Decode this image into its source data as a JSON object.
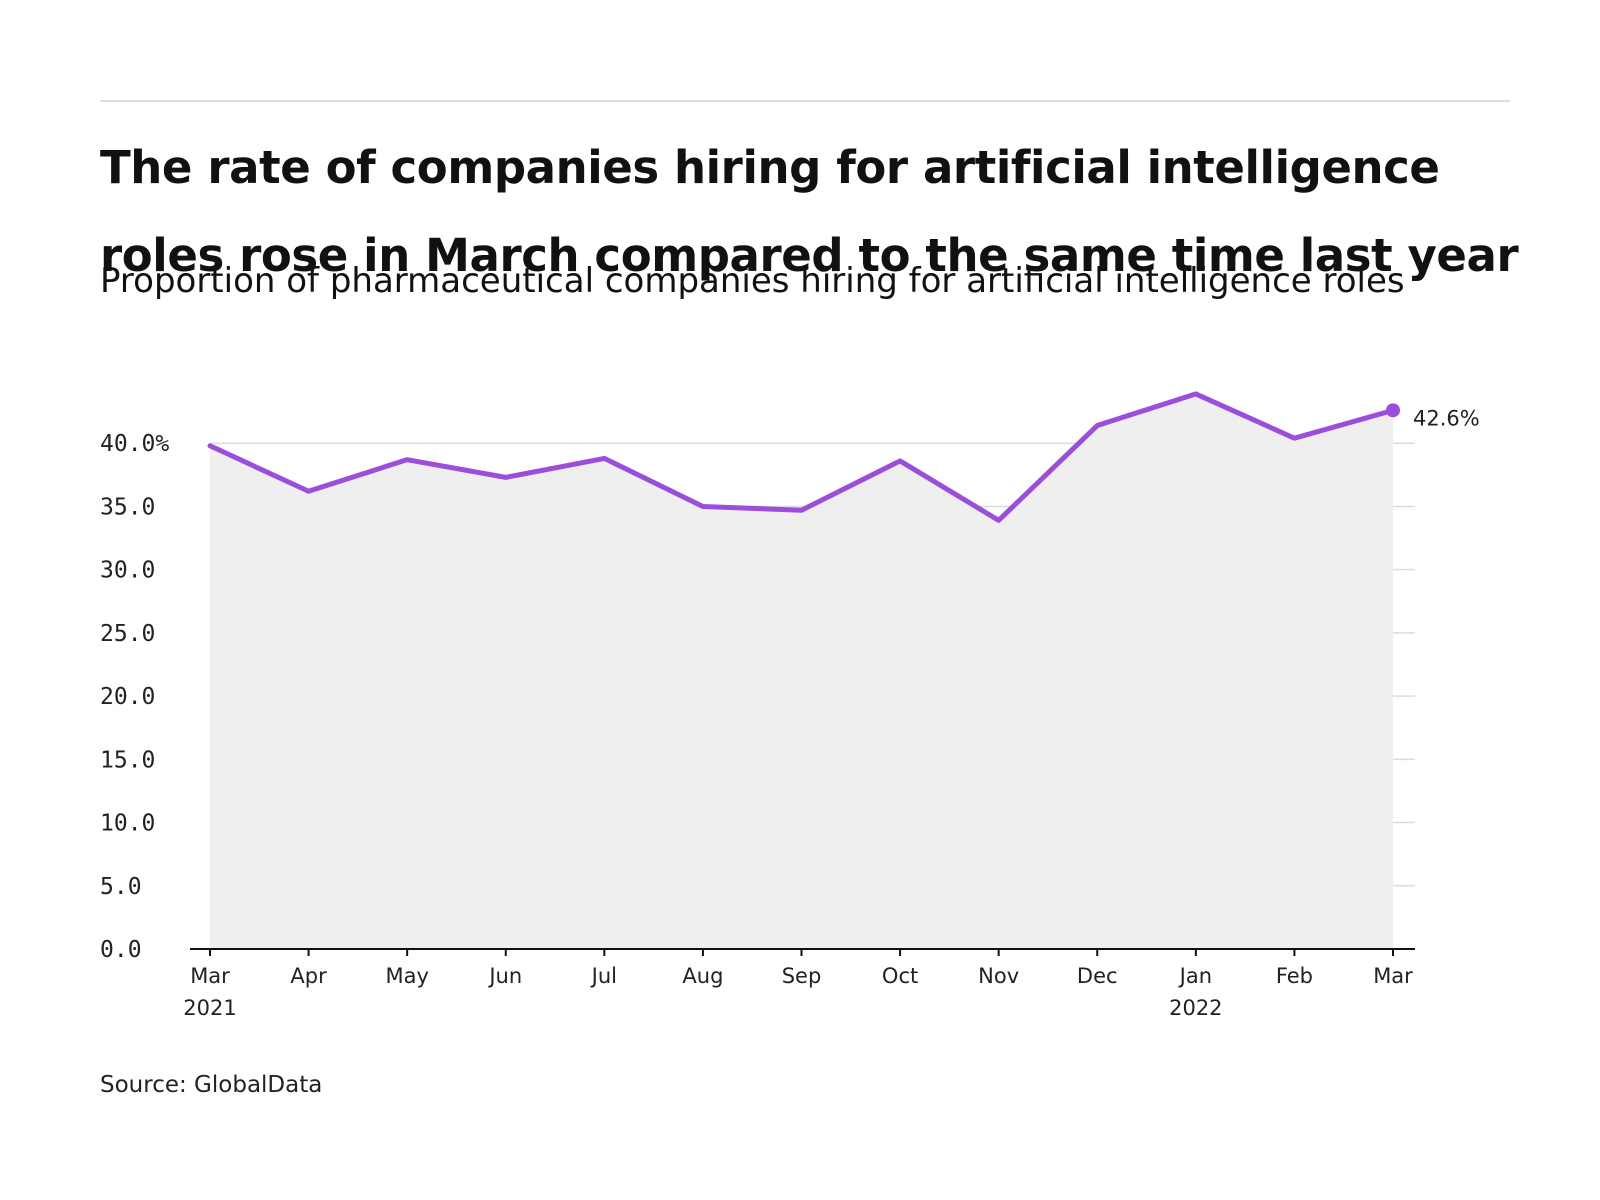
{
  "header": {
    "title": "The rate of companies hiring for artificial intelligence roles rose in March compared to the same time last year",
    "subtitle": "Proportion of pharmaceutical companies hiring for artificial intelligence roles"
  },
  "footer": {
    "source": "Source: GlobalData"
  },
  "chart_data": {
    "type": "area",
    "categories": [
      "Mar 2021",
      "Apr",
      "May",
      "Jun",
      "Jul",
      "Aug",
      "Sep",
      "Oct",
      "Nov",
      "Dec",
      "Jan 2022",
      "Feb",
      "Mar"
    ],
    "x_tick_labels": [
      [
        "Mar",
        "2021"
      ],
      [
        "Apr"
      ],
      [
        "May"
      ],
      [
        "Jun"
      ],
      [
        "Jul"
      ],
      [
        "Aug"
      ],
      [
        "Sep"
      ],
      [
        "Oct"
      ],
      [
        "Nov"
      ],
      [
        "Dec"
      ],
      [
        "Jan",
        "2022"
      ],
      [
        "Feb"
      ],
      [
        "Mar"
      ]
    ],
    "values": [
      39.8,
      36.2,
      38.7,
      37.3,
      38.8,
      35.0,
      34.7,
      38.6,
      33.9,
      41.4,
      43.9,
      40.4,
      42.6
    ],
    "ylim": [
      0,
      45
    ],
    "y_ticks": [
      0,
      5,
      10,
      15,
      20,
      25,
      30,
      35,
      40
    ],
    "y_tick_labels": [
      "0.0",
      "5.0",
      "10.0",
      "15.0",
      "20.0",
      "25.0",
      "30.0",
      "35.0",
      "40.0%"
    ],
    "end_label": "42.6%",
    "grid": true,
    "line_color": "#9b4ddb",
    "fill_color": "#efefef",
    "grid_color": "#dcdcdc"
  }
}
